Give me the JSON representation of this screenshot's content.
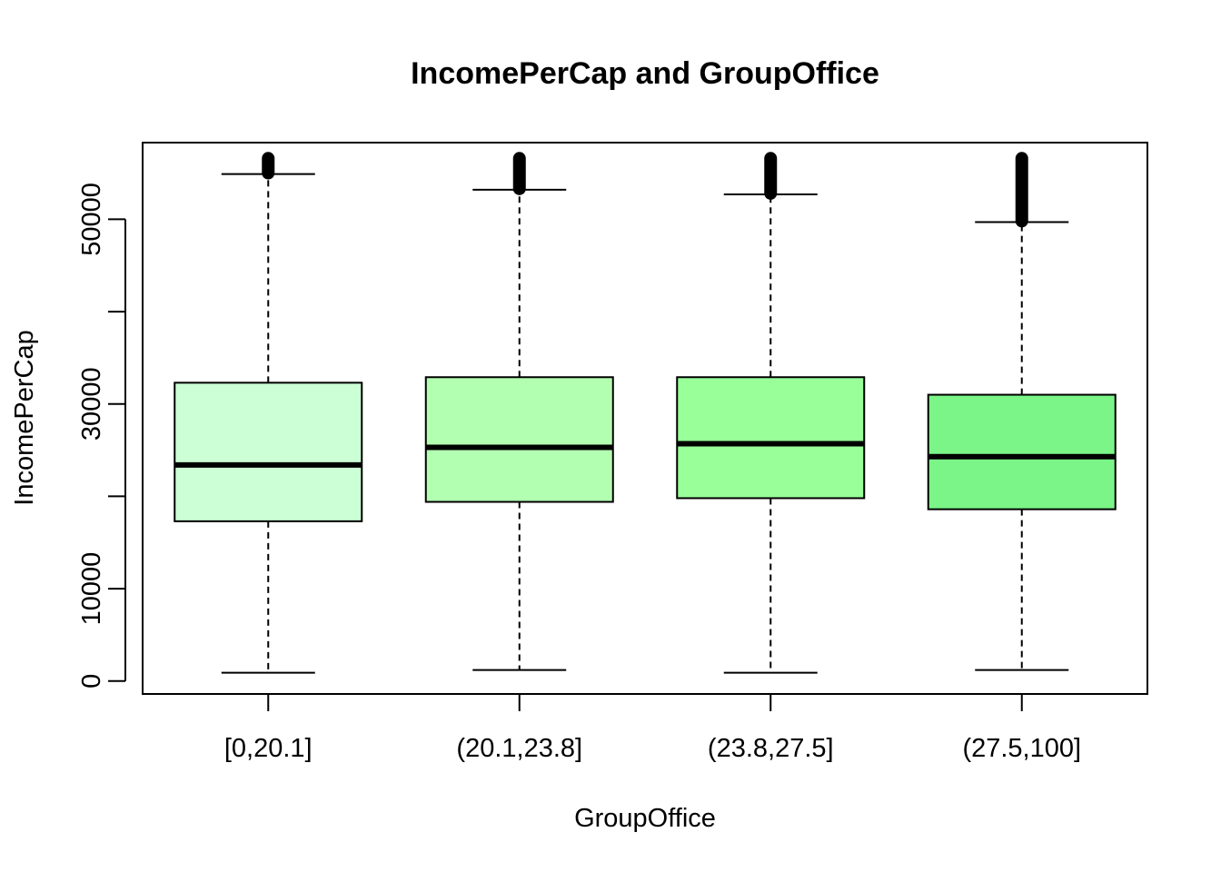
{
  "chart_data": {
    "type": "boxplot",
    "title": "IncomePerCap and GroupOffice",
    "xlabel": "GroupOffice",
    "ylabel": "IncomePerCap",
    "categories": [
      "[0,20.1]",
      "(20.1,23.8]",
      "(23.8,27.5]",
      "(27.5,100]"
    ],
    "ylim": [
      -1400,
      58300
    ],
    "yticks": [
      0,
      10000,
      20000,
      30000,
      40000,
      50000
    ],
    "ytick_labels": [
      "0",
      "10000",
      "",
      "30000",
      "",
      "50000"
    ],
    "grid": false,
    "legend": "none",
    "boxes": [
      {
        "category": "[0,20.1]",
        "whisker_low": 900,
        "q1": 17300,
        "median": 23400,
        "q3": 32300,
        "whisker_high": 54900,
        "outliers_from": 55000,
        "outliers_to": 56600,
        "color": "#CCFFD5"
      },
      {
        "category": "(20.1,23.8]",
        "whisker_low": 1200,
        "q1": 19400,
        "median": 25300,
        "q3": 32900,
        "whisker_high": 53200,
        "outliers_from": 53300,
        "outliers_to": 56600,
        "color": "#B3FFB2"
      },
      {
        "category": "(23.8,27.5]",
        "whisker_low": 900,
        "q1": 19800,
        "median": 25700,
        "q3": 32900,
        "whisker_high": 52700,
        "outliers_from": 52800,
        "outliers_to": 56600,
        "color": "#99FF99"
      },
      {
        "category": "(27.5,100]",
        "whisker_low": 1200,
        "q1": 18600,
        "median": 24300,
        "q3": 31000,
        "whisker_high": 49700,
        "outliers_from": 49800,
        "outliers_to": 56600,
        "color": "#7BF587"
      }
    ]
  }
}
